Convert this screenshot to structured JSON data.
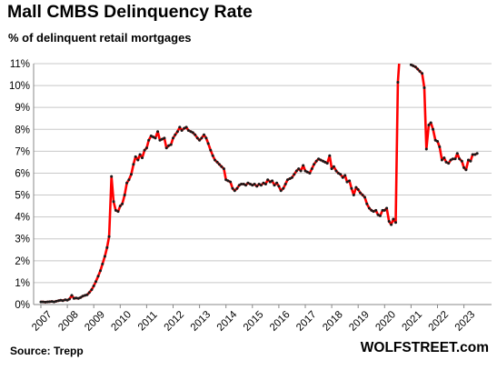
{
  "title": "Mall CMBS Delinquency Rate",
  "subtitle": "% of delinquent retail mortgages",
  "source": "Source: Trepp",
  "brand": "WOLFSTREET.com",
  "chart_data": {
    "type": "line",
    "title": "Mall CMBS Delinquency Rate",
    "subtitle": "% of delinquent retail mortgages",
    "xlabel": "",
    "ylabel": "",
    "x_ticks": [
      "2007",
      "2008",
      "2009",
      "2010",
      "2011",
      "2012",
      "2013",
      "2014",
      "2015",
      "2016",
      "2017",
      "2018",
      "2019",
      "2020",
      "2021",
      "2022",
      "2023"
    ],
    "y_ticks": [
      "0%",
      "1%",
      "2%",
      "3%",
      "4%",
      "5%",
      "6%",
      "7%",
      "8%",
      "9%",
      "10%",
      "11%"
    ],
    "xlim": [
      2007.0,
      2023.85
    ],
    "ylim": [
      0,
      11
    ],
    "grid": "horizontal",
    "line_color": "#ff0000",
    "marker_color": "#1a1a1a",
    "series": [
      {
        "name": "",
        "points": [
          [
            2007.0,
            0.12
          ],
          [
            2007.08,
            0.12
          ],
          [
            2007.17,
            0.11
          ],
          [
            2007.25,
            0.12
          ],
          [
            2007.33,
            0.13
          ],
          [
            2007.42,
            0.14
          ],
          [
            2007.5,
            0.12
          ],
          [
            2007.58,
            0.15
          ],
          [
            2007.67,
            0.18
          ],
          [
            2007.75,
            0.2
          ],
          [
            2007.83,
            0.18
          ],
          [
            2007.92,
            0.22
          ],
          [
            2008.0,
            0.2
          ],
          [
            2008.08,
            0.25
          ],
          [
            2008.17,
            0.42
          ],
          [
            2008.25,
            0.28
          ],
          [
            2008.33,
            0.3
          ],
          [
            2008.42,
            0.28
          ],
          [
            2008.5,
            0.32
          ],
          [
            2008.58,
            0.38
          ],
          [
            2008.67,
            0.42
          ],
          [
            2008.75,
            0.45
          ],
          [
            2008.83,
            0.55
          ],
          [
            2008.92,
            0.68
          ],
          [
            2009.0,
            0.85
          ],
          [
            2009.08,
            1.05
          ],
          [
            2009.17,
            1.3
          ],
          [
            2009.25,
            1.55
          ],
          [
            2009.33,
            1.85
          ],
          [
            2009.42,
            2.2
          ],
          [
            2009.5,
            2.6
          ],
          [
            2009.58,
            3.1
          ],
          [
            2009.67,
            5.85
          ],
          [
            2009.75,
            4.7
          ],
          [
            2009.83,
            4.3
          ],
          [
            2009.92,
            4.25
          ],
          [
            2010.0,
            4.5
          ],
          [
            2010.08,
            4.6
          ],
          [
            2010.17,
            5.0
          ],
          [
            2010.25,
            5.55
          ],
          [
            2010.33,
            5.7
          ],
          [
            2010.42,
            5.95
          ],
          [
            2010.5,
            6.4
          ],
          [
            2010.58,
            6.75
          ],
          [
            2010.67,
            6.6
          ],
          [
            2010.75,
            6.85
          ],
          [
            2010.83,
            6.7
          ],
          [
            2010.92,
            7.05
          ],
          [
            2011.0,
            7.15
          ],
          [
            2011.08,
            7.5
          ],
          [
            2011.17,
            7.7
          ],
          [
            2011.25,
            7.65
          ],
          [
            2011.33,
            7.6
          ],
          [
            2011.42,
            7.9
          ],
          [
            2011.5,
            7.5
          ],
          [
            2011.58,
            7.55
          ],
          [
            2011.67,
            7.6
          ],
          [
            2011.75,
            7.15
          ],
          [
            2011.83,
            7.25
          ],
          [
            2011.92,
            7.3
          ],
          [
            2012.0,
            7.6
          ],
          [
            2012.08,
            7.75
          ],
          [
            2012.17,
            7.9
          ],
          [
            2012.25,
            8.1
          ],
          [
            2012.33,
            7.95
          ],
          [
            2012.42,
            8.05
          ],
          [
            2012.5,
            8.1
          ],
          [
            2012.58,
            7.95
          ],
          [
            2012.67,
            7.9
          ],
          [
            2012.75,
            7.85
          ],
          [
            2012.83,
            7.75
          ],
          [
            2012.92,
            7.6
          ],
          [
            2013.0,
            7.5
          ],
          [
            2013.08,
            7.6
          ],
          [
            2013.17,
            7.75
          ],
          [
            2013.25,
            7.6
          ],
          [
            2013.33,
            7.35
          ],
          [
            2013.42,
            7.05
          ],
          [
            2013.5,
            6.8
          ],
          [
            2013.58,
            6.6
          ],
          [
            2013.67,
            6.5
          ],
          [
            2013.75,
            6.4
          ],
          [
            2013.83,
            6.3
          ],
          [
            2013.92,
            6.2
          ],
          [
            2014.0,
            5.7
          ],
          [
            2014.08,
            5.65
          ],
          [
            2014.17,
            5.6
          ],
          [
            2014.25,
            5.3
          ],
          [
            2014.33,
            5.2
          ],
          [
            2014.42,
            5.3
          ],
          [
            2014.5,
            5.45
          ],
          [
            2014.58,
            5.5
          ],
          [
            2014.67,
            5.5
          ],
          [
            2014.75,
            5.45
          ],
          [
            2014.83,
            5.55
          ],
          [
            2014.92,
            5.5
          ],
          [
            2015.0,
            5.45
          ],
          [
            2015.08,
            5.5
          ],
          [
            2015.17,
            5.4
          ],
          [
            2015.25,
            5.5
          ],
          [
            2015.33,
            5.45
          ],
          [
            2015.42,
            5.55
          ],
          [
            2015.5,
            5.5
          ],
          [
            2015.58,
            5.7
          ],
          [
            2015.67,
            5.6
          ],
          [
            2015.75,
            5.65
          ],
          [
            2015.83,
            5.45
          ],
          [
            2015.92,
            5.55
          ],
          [
            2016.0,
            5.4
          ],
          [
            2016.08,
            5.2
          ],
          [
            2016.17,
            5.3
          ],
          [
            2016.25,
            5.5
          ],
          [
            2016.33,
            5.7
          ],
          [
            2016.42,
            5.75
          ],
          [
            2016.5,
            5.8
          ],
          [
            2016.58,
            5.95
          ],
          [
            2016.67,
            6.1
          ],
          [
            2016.75,
            6.2
          ],
          [
            2016.83,
            6.1
          ],
          [
            2016.92,
            6.35
          ],
          [
            2017.0,
            6.1
          ],
          [
            2017.08,
            6.05
          ],
          [
            2017.17,
            6.0
          ],
          [
            2017.25,
            6.2
          ],
          [
            2017.33,
            6.4
          ],
          [
            2017.42,
            6.55
          ],
          [
            2017.5,
            6.65
          ],
          [
            2017.58,
            6.6
          ],
          [
            2017.67,
            6.55
          ],
          [
            2017.75,
            6.5
          ],
          [
            2017.83,
            6.45
          ],
          [
            2017.92,
            6.8
          ],
          [
            2018.0,
            6.2
          ],
          [
            2018.08,
            6.3
          ],
          [
            2018.17,
            6.1
          ],
          [
            2018.25,
            6.0
          ],
          [
            2018.33,
            5.95
          ],
          [
            2018.42,
            5.8
          ],
          [
            2018.5,
            5.9
          ],
          [
            2018.58,
            5.6
          ],
          [
            2018.67,
            5.65
          ],
          [
            2018.75,
            5.3
          ],
          [
            2018.83,
            5.0
          ],
          [
            2018.92,
            5.35
          ],
          [
            2019.0,
            5.25
          ],
          [
            2019.08,
            5.1
          ],
          [
            2019.17,
            5.0
          ],
          [
            2019.25,
            4.9
          ],
          [
            2019.33,
            4.6
          ],
          [
            2019.42,
            4.4
          ],
          [
            2019.5,
            4.3
          ],
          [
            2019.58,
            4.25
          ],
          [
            2019.67,
            4.3
          ],
          [
            2019.75,
            4.1
          ],
          [
            2019.83,
            4.05
          ],
          [
            2019.92,
            4.3
          ],
          [
            2020.0,
            4.3
          ],
          [
            2020.08,
            4.4
          ],
          [
            2020.17,
            3.8
          ],
          [
            2020.25,
            3.65
          ],
          [
            2020.33,
            3.9
          ],
          [
            2020.42,
            3.75
          ],
          [
            2020.5,
            10.15
          ],
          [
            2020.55,
            11.0
          ]
        ]
      },
      {
        "name": "",
        "points": [
          [
            2021.0,
            10.95
          ],
          [
            2021.08,
            10.9
          ],
          [
            2021.17,
            10.85
          ],
          [
            2021.25,
            10.75
          ],
          [
            2021.33,
            10.65
          ],
          [
            2021.42,
            10.55
          ],
          [
            2021.5,
            9.9
          ],
          [
            2021.58,
            7.1
          ],
          [
            2021.67,
            8.2
          ],
          [
            2021.75,
            8.3
          ],
          [
            2021.83,
            8.0
          ],
          [
            2021.92,
            7.5
          ],
          [
            2022.0,
            7.45
          ],
          [
            2022.08,
            7.2
          ],
          [
            2022.17,
            6.6
          ],
          [
            2022.25,
            6.7
          ],
          [
            2022.33,
            6.5
          ],
          [
            2022.42,
            6.45
          ],
          [
            2022.5,
            6.6
          ],
          [
            2022.58,
            6.65
          ],
          [
            2022.67,
            6.65
          ],
          [
            2022.75,
            6.9
          ],
          [
            2022.83,
            6.65
          ],
          [
            2022.92,
            6.55
          ],
          [
            2023.0,
            6.25
          ],
          [
            2023.08,
            6.15
          ],
          [
            2023.17,
            6.6
          ],
          [
            2023.25,
            6.55
          ],
          [
            2023.33,
            6.85
          ],
          [
            2023.42,
            6.85
          ],
          [
            2023.5,
            6.9
          ]
        ]
      }
    ]
  }
}
